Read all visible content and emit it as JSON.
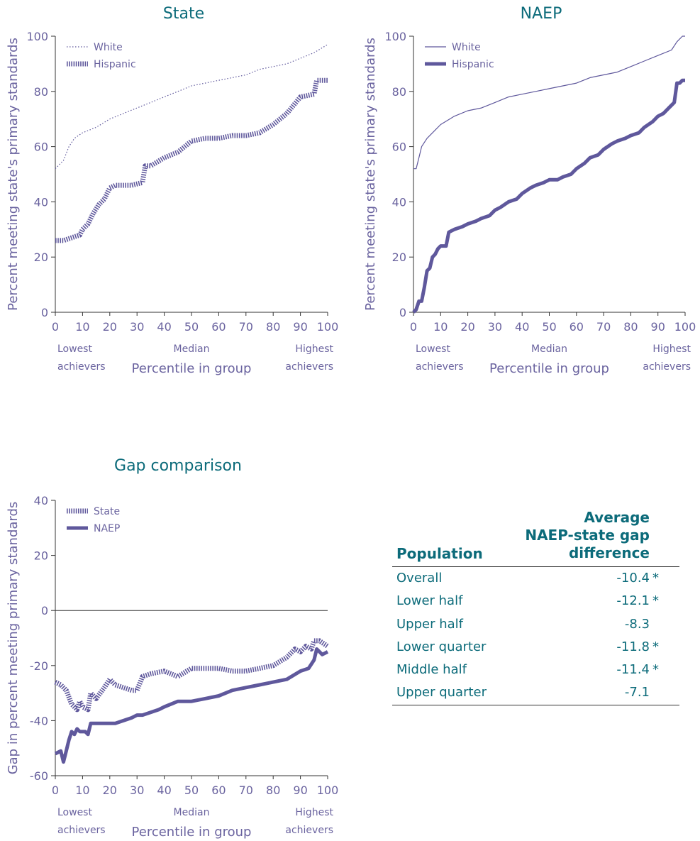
{
  "colors": {
    "series": "#5f589c",
    "title": "#0c6b7a",
    "axis": "#6a639f"
  },
  "chart_data": [
    {
      "type": "line",
      "title": "State",
      "ylabel": "Percent meeting state's primary standards",
      "xlabel": "Percentile in group",
      "xlim": [
        0,
        100
      ],
      "ylim": [
        0,
        100
      ],
      "xticks": [
        "0",
        "10",
        "20",
        "30",
        "40",
        "50",
        "60",
        "70",
        "80",
        "90",
        "100"
      ],
      "yticks": [
        "0",
        "20",
        "40",
        "60",
        "80",
        "100"
      ],
      "annotations": [
        "Lowest achievers",
        "Median",
        "Highest achievers"
      ],
      "legend_position": "top-left",
      "series": [
        {
          "name": "White",
          "style": "dotted",
          "x": [
            0,
            3,
            5,
            7,
            10,
            15,
            20,
            25,
            30,
            35,
            40,
            45,
            50,
            55,
            60,
            65,
            70,
            75,
            80,
            85,
            90,
            95,
            100
          ],
          "y": [
            52,
            55,
            60,
            63,
            65,
            67,
            70,
            72,
            74,
            76,
            78,
            80,
            82,
            83,
            84,
            85,
            86,
            88,
            89,
            90,
            92,
            94,
            97
          ]
        },
        {
          "name": "Hispanic",
          "style": "hatched",
          "x": [
            0,
            3,
            6,
            9,
            10,
            12,
            14,
            16,
            18,
            20,
            22,
            25,
            28,
            32,
            33,
            35,
            40,
            45,
            50,
            55,
            60,
            65,
            70,
            75,
            80,
            85,
            90,
            95,
            96,
            100
          ],
          "y": [
            26,
            26,
            27,
            28,
            30,
            32,
            36,
            39,
            41,
            45,
            46,
            46,
            46,
            47,
            53,
            53,
            56,
            58,
            62,
            63,
            63,
            64,
            64,
            65,
            68,
            72,
            78,
            79,
            84,
            84
          ]
        }
      ]
    },
    {
      "type": "line",
      "title": "NAEP",
      "ylabel": "Percent meeting state's primary standards",
      "xlabel": "Percentile in group",
      "xlim": [
        0,
        100
      ],
      "ylim": [
        0,
        100
      ],
      "xticks": [
        "0",
        "10",
        "20",
        "30",
        "40",
        "50",
        "60",
        "70",
        "80",
        "90",
        "100"
      ],
      "yticks": [
        "0",
        "20",
        "40",
        "60",
        "80",
        "100"
      ],
      "annotations": [
        "Lowest achievers",
        "Median",
        "Highest achievers"
      ],
      "legend_position": "top-left",
      "series": [
        {
          "name": "White",
          "style": "thin",
          "x": [
            0,
            1,
            2,
            3,
            5,
            8,
            10,
            15,
            20,
            25,
            30,
            35,
            40,
            45,
            50,
            55,
            60,
            65,
            70,
            75,
            80,
            85,
            90,
            95,
            97,
            99,
            100
          ],
          "y": [
            52,
            52,
            56,
            60,
            63,
            66,
            68,
            71,
            73,
            74,
            76,
            78,
            79,
            80,
            81,
            82,
            83,
            85,
            86,
            87,
            89,
            91,
            93,
            95,
            98,
            100,
            100
          ]
        },
        {
          "name": "Hispanic",
          "style": "thick",
          "x": [
            0,
            1,
            2,
            3,
            4,
            5,
            6,
            7,
            8,
            9,
            10,
            12,
            13,
            15,
            18,
            20,
            23,
            25,
            28,
            30,
            32,
            35,
            38,
            40,
            43,
            45,
            48,
            50,
            53,
            55,
            58,
            60,
            63,
            65,
            68,
            70,
            73,
            75,
            78,
            80,
            83,
            85,
            88,
            90,
            92,
            94,
            95,
            96,
            97,
            98,
            99,
            100
          ],
          "y": [
            0,
            1,
            4,
            4,
            9,
            15,
            16,
            20,
            21,
            23,
            24,
            24,
            29,
            30,
            31,
            32,
            33,
            34,
            35,
            37,
            38,
            40,
            41,
            43,
            45,
            46,
            47,
            48,
            48,
            49,
            50,
            52,
            54,
            56,
            57,
            59,
            61,
            62,
            63,
            64,
            65,
            67,
            69,
            71,
            72,
            74,
            75,
            76,
            83,
            83,
            84,
            84
          ]
        }
      ]
    },
    {
      "type": "line",
      "title": "Gap comparison",
      "ylabel": "Gap in percent meeting primary standards",
      "xlabel": "Percentile in group",
      "xlim": [
        0,
        100
      ],
      "ylim": [
        -60,
        40
      ],
      "xticks": [
        "0",
        "10",
        "20",
        "30",
        "40",
        "50",
        "60",
        "70",
        "80",
        "90",
        "100"
      ],
      "yticks": [
        "-60",
        "-40",
        "-20",
        "0",
        "20",
        "40"
      ],
      "annotations": [
        "Lowest achievers",
        "Median",
        "Highest achievers"
      ],
      "legend_position": "top-left",
      "series": [
        {
          "name": "State",
          "style": "hatched",
          "x": [
            0,
            2,
            4,
            6,
            8,
            9,
            10,
            12,
            13,
            15,
            18,
            20,
            22,
            25,
            28,
            30,
            32,
            35,
            40,
            45,
            50,
            55,
            60,
            65,
            70,
            75,
            80,
            85,
            88,
            90,
            92,
            94,
            95,
            97,
            100
          ],
          "y": [
            -26,
            -27,
            -29,
            -34,
            -36,
            -33,
            -35,
            -36,
            -30,
            -32,
            -28,
            -25,
            -27,
            -28,
            -29,
            -29,
            -24,
            -23,
            -22,
            -24,
            -21,
            -21,
            -21,
            -22,
            -22,
            -21,
            -20,
            -17,
            -14,
            -15,
            -13,
            -14,
            -11,
            -11,
            -13
          ]
        },
        {
          "name": "NAEP",
          "style": "thick",
          "x": [
            0,
            2,
            3,
            4,
            5,
            6,
            7,
            8,
            9,
            10,
            11,
            12,
            13,
            15,
            18,
            20,
            22,
            25,
            28,
            30,
            32,
            35,
            38,
            40,
            45,
            50,
            55,
            60,
            65,
            70,
            75,
            80,
            85,
            90,
            93,
            95,
            96,
            97,
            98,
            100
          ],
          "y": [
            -52,
            -51,
            -55,
            -51,
            -47,
            -44,
            -45,
            -43,
            -44,
            -44,
            -44,
            -45,
            -41,
            -41,
            -41,
            -41,
            -41,
            -40,
            -39,
            -38,
            -38,
            -37,
            -36,
            -35,
            -33,
            -33,
            -32,
            -31,
            -29,
            -28,
            -27,
            -26,
            -25,
            -22,
            -21,
            -18,
            -14,
            -15,
            -16,
            -15
          ]
        }
      ]
    }
  ],
  "table": {
    "header_population": "Population",
    "header_avg_line1": "Average",
    "header_avg_line2": "NAEP-state gap",
    "header_avg_line3": "difference",
    "rows": [
      {
        "label": "Overall",
        "value": "-10.4",
        "mark": "*"
      },
      {
        "label": "Lower half",
        "value": "-12.1",
        "mark": "*"
      },
      {
        "label": "Upper half",
        "value": "-8.3",
        "mark": ""
      },
      {
        "label": "Lower quarter",
        "value": "-11.8",
        "mark": "*"
      },
      {
        "label": "Middle half",
        "value": "-11.4",
        "mark": "*"
      },
      {
        "label": "Upper quarter",
        "value": "-7.1",
        "mark": ""
      }
    ]
  }
}
